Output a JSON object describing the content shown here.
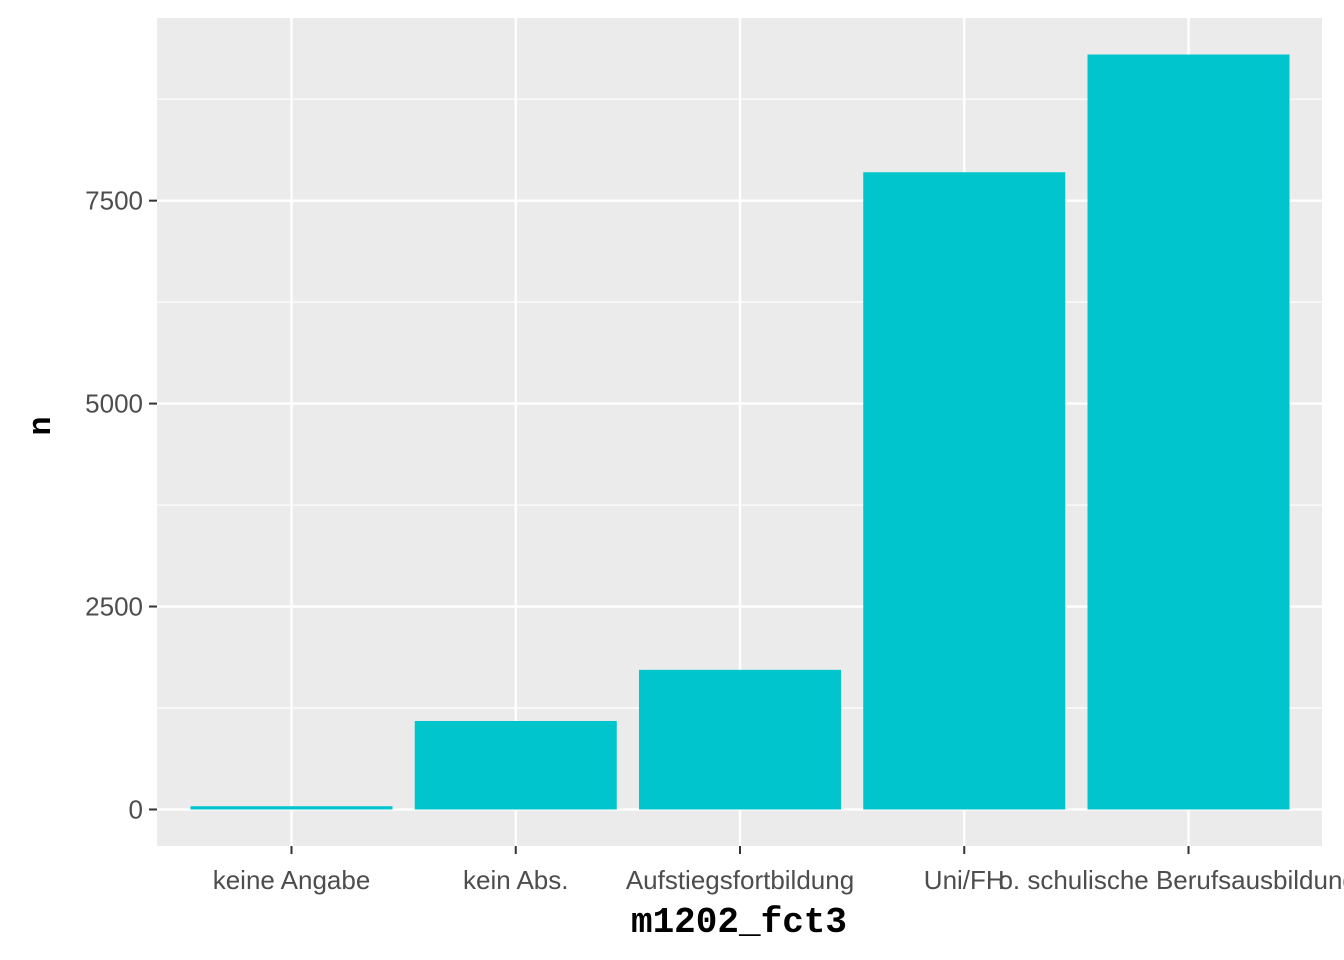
{
  "chart_data": {
    "type": "bar",
    "xlabel": "m1202_fct3",
    "ylabel": "n",
    "categories": [
      "keine Angabe",
      "kein Abs.",
      "Aufstiegsfortbildung",
      "Uni/FH",
      "o. schulische Berufsausbildung/e"
    ],
    "values": [
      40,
      1090,
      1720,
      7850,
      9300
    ],
    "ylim": [
      -450,
      9750
    ],
    "y_ticks": [
      0,
      2500,
      5000,
      7500
    ],
    "y_tick_labels": [
      "0",
      "2500",
      "5000",
      "7500"
    ],
    "grid": true,
    "legend": "none",
    "colors": {
      "bar": "#00C5CD",
      "panel_background": "#EBEBEB",
      "grid": "#FFFFFF",
      "tick_text": "#4D4D4D",
      "axis_title": "#000000"
    }
  }
}
